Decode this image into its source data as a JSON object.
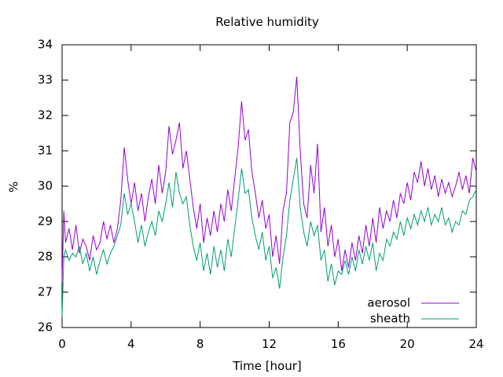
{
  "chart_data": {
    "type": "line",
    "title": "Relative humidity",
    "xlabel": "Time [hour]",
    "ylabel": "%",
    "xlim": [
      0,
      24
    ],
    "ylim": [
      26,
      34
    ],
    "xticks": [
      0,
      4,
      8,
      12,
      16,
      20,
      24
    ],
    "yticks": [
      26,
      27,
      28,
      29,
      30,
      31,
      32,
      33,
      34
    ],
    "grid": false,
    "legend_position": "bottom-right",
    "series": [
      {
        "name": "aerosol",
        "color": "#9400d3",
        "x": [
          0,
          0.1,
          0.2,
          0.4,
          0.6,
          0.8,
          1,
          1.2,
          1.4,
          1.6,
          1.8,
          2,
          2.2,
          2.4,
          2.6,
          2.8,
          3,
          3.2,
          3.4,
          3.6,
          3.8,
          4,
          4.2,
          4.4,
          4.6,
          4.8,
          5,
          5.2,
          5.4,
          5.6,
          5.8,
          6,
          6.2,
          6.4,
          6.6,
          6.8,
          7,
          7.2,
          7.4,
          7.6,
          7.8,
          8,
          8.2,
          8.4,
          8.6,
          8.8,
          9,
          9.2,
          9.4,
          9.6,
          9.8,
          10,
          10.2,
          10.4,
          10.6,
          10.8,
          11,
          11.2,
          11.4,
          11.6,
          11.8,
          12,
          12.2,
          12.4,
          12.6,
          12.8,
          13,
          13.2,
          13.4,
          13.6,
          13.8,
          14,
          14.2,
          14.4,
          14.6,
          14.8,
          15,
          15.2,
          15.4,
          15.6,
          15.8,
          16,
          16.2,
          16.4,
          16.6,
          16.8,
          17,
          17.2,
          17.4,
          17.6,
          17.8,
          18,
          18.2,
          18.4,
          18.6,
          18.8,
          19,
          19.2,
          19.4,
          19.6,
          19.8,
          20,
          20.2,
          20.4,
          20.6,
          20.8,
          21,
          21.2,
          21.4,
          21.6,
          21.8,
          22,
          22.2,
          22.4,
          22.6,
          22.8,
          23,
          23.2,
          23.4,
          23.6,
          23.8,
          24
        ],
        "values": [
          27.3,
          29.3,
          28.4,
          28.8,
          28.2,
          28.9,
          28.1,
          28.5,
          28.3,
          27.9,
          28.6,
          28.2,
          28.4,
          29.0,
          28.5,
          28.9,
          28.4,
          28.8,
          29.6,
          31.1,
          30.2,
          29.5,
          30.1,
          29.3,
          29.8,
          29.0,
          29.7,
          30.2,
          29.5,
          30.6,
          29.8,
          30.4,
          31.7,
          30.9,
          31.3,
          31.8,
          30.5,
          31.0,
          30.2,
          29.4,
          28.8,
          29.5,
          28.4,
          29.1,
          28.6,
          29.3,
          28.7,
          29.5,
          29.0,
          29.9,
          29.3,
          30.2,
          31.1,
          32.4,
          31.3,
          31.6,
          30.4,
          29.8,
          29.1,
          29.6,
          28.8,
          29.2,
          28.0,
          28.6,
          27.8,
          29.3,
          29.8,
          31.8,
          32.1,
          33.1,
          31.0,
          29.5,
          29.1,
          30.6,
          29.8,
          31.2,
          28.7,
          29.4,
          28.3,
          28.9,
          28.0,
          28.5,
          27.6,
          28.2,
          27.7,
          28.4,
          27.9,
          28.6,
          28.1,
          28.9,
          28.3,
          29.1,
          28.4,
          29.4,
          28.8,
          29.3,
          29.0,
          29.6,
          29.1,
          29.8,
          29.5,
          30.1,
          29.6,
          30.4,
          30.1,
          30.7,
          30.0,
          30.5,
          29.9,
          30.3,
          29.7,
          30.2,
          29.8,
          30.1,
          29.7,
          30.0,
          30.4,
          29.9,
          30.3,
          29.8,
          30.8,
          30.4
        ]
      },
      {
        "name": "sheath",
        "color": "#009e73",
        "x": [
          0,
          0.1,
          0.2,
          0.4,
          0.6,
          0.8,
          1,
          1.2,
          1.4,
          1.6,
          1.8,
          2,
          2.2,
          2.4,
          2.6,
          2.8,
          3,
          3.2,
          3.4,
          3.6,
          3.8,
          4,
          4.2,
          4.4,
          4.6,
          4.8,
          5,
          5.2,
          5.4,
          5.6,
          5.8,
          6,
          6.2,
          6.4,
          6.6,
          6.8,
          7,
          7.2,
          7.4,
          7.6,
          7.8,
          8,
          8.2,
          8.4,
          8.6,
          8.8,
          9,
          9.2,
          9.4,
          9.6,
          9.8,
          10,
          10.2,
          10.4,
          10.6,
          10.8,
          11,
          11.2,
          11.4,
          11.6,
          11.8,
          12,
          12.2,
          12.4,
          12.6,
          12.8,
          13,
          13.2,
          13.4,
          13.6,
          13.8,
          14,
          14.2,
          14.4,
          14.6,
          14.8,
          15,
          15.2,
          15.4,
          15.6,
          15.8,
          16,
          16.2,
          16.4,
          16.6,
          16.8,
          17,
          17.2,
          17.4,
          17.6,
          17.8,
          18,
          18.2,
          18.4,
          18.6,
          18.8,
          19,
          19.2,
          19.4,
          19.6,
          19.8,
          20,
          20.2,
          20.4,
          20.6,
          20.8,
          21,
          21.2,
          21.4,
          21.6,
          21.8,
          22,
          22.2,
          22.4,
          22.6,
          22.8,
          23,
          23.2,
          23.4,
          23.6,
          23.8,
          24
        ],
        "values": [
          26.3,
          28.0,
          28.2,
          27.9,
          28.1,
          28.0,
          28.3,
          27.8,
          28.1,
          27.6,
          28.0,
          27.5,
          27.9,
          28.2,
          27.8,
          28.1,
          28.3,
          28.6,
          28.9,
          29.8,
          29.2,
          29.5,
          29.0,
          28.4,
          28.9,
          28.3,
          28.7,
          29.0,
          28.6,
          29.3,
          29.0,
          29.5,
          30.1,
          29.4,
          30.4,
          29.8,
          29.5,
          29.7,
          28.9,
          28.3,
          27.9,
          28.4,
          27.6,
          28.1,
          27.5,
          28.3,
          27.7,
          28.2,
          27.6,
          28.5,
          28.0,
          28.8,
          29.6,
          30.5,
          29.8,
          29.9,
          29.1,
          28.6,
          28.2,
          28.7,
          27.9,
          28.3,
          27.4,
          27.7,
          27.1,
          28.0,
          28.6,
          29.6,
          30.2,
          30.8,
          29.4,
          28.7,
          28.3,
          29.0,
          28.6,
          28.9,
          27.9,
          28.2,
          27.3,
          27.8,
          27.2,
          27.6,
          27.5,
          27.9,
          27.5,
          28.0,
          27.6,
          28.2,
          27.8,
          28.3,
          27.9,
          28.4,
          27.6,
          28.1,
          27.9,
          28.5,
          28.3,
          28.7,
          28.5,
          29.0,
          28.6,
          29.1,
          28.8,
          29.2,
          28.9,
          29.3,
          29.0,
          29.4,
          28.9,
          29.2,
          29.0,
          29.4,
          28.9,
          29.1,
          28.7,
          29.0,
          28.9,
          29.3,
          29.2,
          29.6,
          29.7,
          29.9
        ]
      }
    ]
  }
}
